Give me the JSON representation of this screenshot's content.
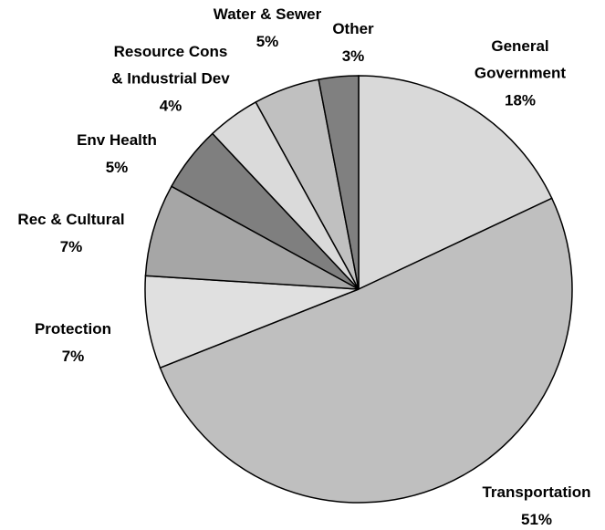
{
  "chart_data": {
    "type": "pie",
    "categories": [
      "General\nGovernment",
      "Transportation",
      "Protection",
      "Rec & Cultural",
      "Env Health",
      "Resource Cons\n& Industrial Dev",
      "Water & Sewer",
      "Other"
    ],
    "values": [
      18,
      51,
      7,
      7,
      5,
      4,
      5,
      3
    ],
    "value_labels": [
      "18%",
      "51%",
      "7%",
      "7%",
      "5%",
      "4%",
      "5%",
      "3%"
    ],
    "colors": [
      "#d9d9d9",
      "#bfbfbf",
      "#e0e0e0",
      "#a6a6a6",
      "#7f7f7f",
      "#dadada",
      "#c0c0c0",
      "#808080"
    ]
  }
}
